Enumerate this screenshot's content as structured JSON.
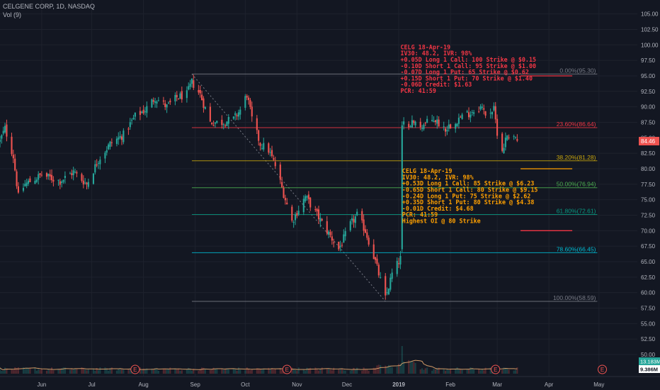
{
  "header": {
    "title": "CELGENE CORP, 1D, NASDAQ",
    "volume_label": "Vol (9)"
  },
  "colors": {
    "background": "#131722",
    "grid": "#1e222d",
    "up": "#26a69a",
    "down": "#ef5350",
    "axis_text": "#b2b5be",
    "fib_0": "#787b86",
    "fib_236": "#f23645",
    "fib_382": "#c8a60d",
    "fib_50": "#4caf50",
    "fib_618": "#089981",
    "fib_786": "#00bcd4",
    "fib_100": "#787b86",
    "annotation_red": "#f23645",
    "annotation_orange": "#ffa000",
    "hline_red": "#f23645",
    "hline_orange": "#ffa000",
    "price_badge": "#ef5350",
    "volume_badge": "#26a69a",
    "volume_ma": "#d19a66"
  },
  "chart_data": {
    "type": "candlestick",
    "title": "CELGENE CORP, 1D, NASDAQ",
    "ylim": [
      47.5,
      107.5
    ],
    "y_ticks": [
      105.0,
      102.5,
      100.0,
      97.5,
      95.0,
      92.5,
      90.0,
      87.5,
      85.0,
      82.5,
      80.0,
      77.5,
      75.0,
      72.5,
      70.0,
      67.5,
      65.0,
      62.5,
      60.0,
      57.5,
      55.0,
      52.5,
      50.0
    ],
    "x_ticks": [
      {
        "label": "Jun",
        "date": "2018-06-01"
      },
      {
        "label": "Jul",
        "date": "2018-07-01"
      },
      {
        "label": "Aug",
        "date": "2018-08-01"
      },
      {
        "label": "Sep",
        "date": "2018-09-01"
      },
      {
        "label": "Oct",
        "date": "2018-10-01"
      },
      {
        "label": "Nov",
        "date": "2018-11-01"
      },
      {
        "label": "Dec",
        "date": "2018-12-01"
      },
      {
        "label": "2019",
        "date": "2019-01-01"
      },
      {
        "label": "Feb",
        "date": "2019-02-01"
      },
      {
        "label": "Mar",
        "date": "2019-03-01"
      },
      {
        "label": "Apr",
        "date": "2019-04-01"
      },
      {
        "label": "May",
        "date": "2019-05-01"
      }
    ],
    "x_range": [
      "2018-05-07",
      "2019-05-24"
    ],
    "grid": true,
    "last_price": "84.46",
    "volume_last": "13.183M",
    "volume_ma_last": "9.386M",
    "price_keypoints": [
      [
        "2018-05-07",
        84.5
      ],
      [
        "2018-05-10",
        86.5
      ],
      [
        "2018-05-15",
        82.0
      ],
      [
        "2018-05-18",
        75.5
      ],
      [
        "2018-05-22",
        77.5
      ],
      [
        "2018-06-01",
        79.0
      ],
      [
        "2018-06-12",
        78.0
      ],
      [
        "2018-06-20",
        79.5
      ],
      [
        "2018-06-28",
        77.5
      ],
      [
        "2018-07-05",
        81.5
      ],
      [
        "2018-07-12",
        84.0
      ],
      [
        "2018-07-20",
        85.5
      ],
      [
        "2018-07-27",
        88.5
      ],
      [
        "2018-08-02",
        89.5
      ],
      [
        "2018-08-08",
        91.5
      ],
      [
        "2018-08-15",
        90.0
      ],
      [
        "2018-08-21",
        91.5
      ],
      [
        "2018-08-27",
        92.0
      ],
      [
        "2018-08-30",
        94.0
      ],
      [
        "2018-09-04",
        92.0
      ],
      [
        "2018-09-10",
        87.5
      ],
      [
        "2018-09-17",
        87.5
      ],
      [
        "2018-09-24",
        88.0
      ],
      [
        "2018-09-28",
        89.5
      ],
      [
        "2018-10-02",
        92.0
      ],
      [
        "2018-10-05",
        88.0
      ],
      [
        "2018-10-10",
        84.0
      ],
      [
        "2018-10-15",
        83.0
      ],
      [
        "2018-10-19",
        80.5
      ],
      [
        "2018-10-24",
        76.0
      ],
      [
        "2018-10-29",
        71.5
      ],
      [
        "2018-11-01",
        73.0
      ],
      [
        "2018-11-06",
        75.5
      ],
      [
        "2018-11-12",
        73.0
      ],
      [
        "2018-11-19",
        70.0
      ],
      [
        "2018-11-26",
        67.0
      ],
      [
        "2018-12-03",
        71.0
      ],
      [
        "2018-12-07",
        72.5
      ],
      [
        "2018-12-12",
        70.0
      ],
      [
        "2018-12-18",
        65.0
      ],
      [
        "2018-12-24",
        59.0
      ],
      [
        "2018-12-28",
        63.0
      ],
      [
        "2019-01-02",
        65.5
      ],
      [
        "2019-01-03",
        87.0
      ],
      [
        "2019-01-08",
        87.5
      ],
      [
        "2019-01-15",
        87.0
      ],
      [
        "2019-01-22",
        88.0
      ],
      [
        "2019-01-29",
        86.5
      ],
      [
        "2019-02-05",
        88.0
      ],
      [
        "2019-02-12",
        89.0
      ],
      [
        "2019-02-19",
        90.0
      ],
      [
        "2019-02-22",
        89.0
      ],
      [
        "2019-02-27",
        89.5
      ],
      [
        "2019-03-01",
        86.0
      ],
      [
        "2019-03-04",
        83.0
      ],
      [
        "2019-03-07",
        85.5
      ],
      [
        "2019-03-11",
        85.5
      ],
      [
        "2019-03-13",
        84.5
      ]
    ],
    "fib_levels": [
      {
        "label": "0.00%(95.30)",
        "price": 95.3,
        "color_key": "fib_0"
      },
      {
        "label": "23.60%(86.64)",
        "price": 86.64,
        "color_key": "fib_236"
      },
      {
        "label": "38.20%(81.28)",
        "price": 81.28,
        "color_key": "fib_382"
      },
      {
        "label": "50.00%(76.94)",
        "price": 76.94,
        "color_key": "fib_50"
      },
      {
        "label": "61.80%(72.61)",
        "price": 72.61,
        "color_key": "fib_618"
      },
      {
        "label": "78.60%(66.45)",
        "price": 66.45,
        "color_key": "fib_786"
      },
      {
        "label": "100.00%(58.59)",
        "price": 58.59,
        "color_key": "fib_100"
      }
    ],
    "fib_range": {
      "start": "2018-08-30",
      "end": "2019-04-30",
      "swing_high": {
        "date": "2018-08-30",
        "price": 95.3
      },
      "swing_low": {
        "date": "2018-12-24",
        "price": 58.59
      }
    },
    "horizontal_lines": [
      {
        "price": 95.0,
        "start": "2019-03-15",
        "end": "2019-04-15",
        "color_key": "hline_red"
      },
      {
        "price": 80.0,
        "start": "2019-03-15",
        "end": "2019-04-15",
        "color_key": "hline_orange"
      },
      {
        "price": 70.0,
        "start": "2019-03-15",
        "end": "2019-04-15",
        "color_key": "hline_red"
      }
    ],
    "event_markers": [
      {
        "label": "E",
        "date": "2018-07-27"
      },
      {
        "label": "E",
        "date": "2018-10-26"
      },
      {
        "label": "E",
        "date": "2019-02-28"
      },
      {
        "label": "E",
        "date": "2019-05-03"
      }
    ],
    "annotations": [
      {
        "color_key": "annotation_red",
        "date": "2019-01-02",
        "price": 99.3,
        "lines": [
          "CELG 18-Apr-19",
          "IV30: 48.2, IVR: 98%",
          "+0.05D Long 1 Call: 100 Strike @ $0.15",
          "-0.10D Short 1 Call: 95 Strike @ $1.00",
          "-0.07D Long 1 Put: 65 Strike @ $0.62",
          "+0.15D Short 1 Put: 70 Strike @ $1.40",
          "-0.06D Credit: $1.63",
          "PCR: 41:59"
        ]
      },
      {
        "color_key": "annotation_orange",
        "date": "2019-01-03",
        "price": 79.3,
        "lines": [
          "CELG 18-Apr-19",
          "IV30: 48.2, IVR: 98%",
          "+0.53D Long 1 Call: 85 Strike @ $6.23",
          "-0.65D Short 1 Call: 80 Strike @ $9.15",
          "-0.24D Long 1 Put: 75 Strike @ $2.62",
          "+0.35D Short 1 Put: 80 Strike @ $4.38",
          "-0.01D Credit: $4.68",
          "PCR: 41:59",
          "Highest OI @ 80 Strike"
        ]
      }
    ]
  }
}
